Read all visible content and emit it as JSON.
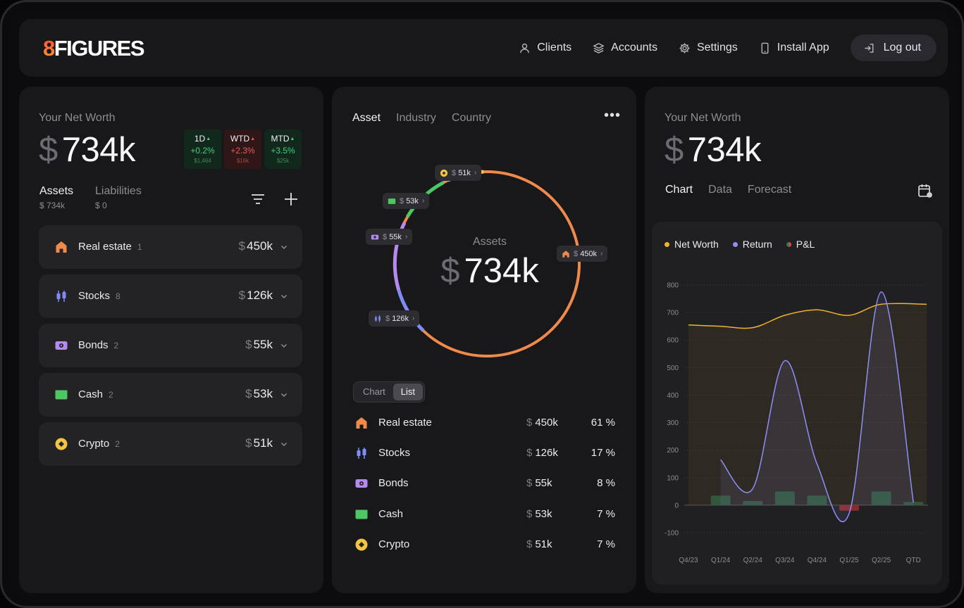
{
  "app": {
    "logo_digit": "8",
    "logo_text": "FIGURES"
  },
  "nav": {
    "clients": "Clients",
    "accounts": "Accounts",
    "settings": "Settings",
    "install": "Install App",
    "logout": "Log out"
  },
  "left": {
    "label": "Your Net Worth",
    "currency": "$",
    "value": "734k",
    "chips": [
      {
        "label": "1D",
        "pct": "+0.2%",
        "sub": "$1,464",
        "trend": "up"
      },
      {
        "label": "WTD",
        "pct": "+2.3%",
        "sub": "$16k",
        "trend": "down"
      },
      {
        "label": "MTD",
        "pct": "+3.5%",
        "sub": "$25k",
        "trend": "up"
      }
    ],
    "tabs": [
      {
        "label": "Assets",
        "sub": "$ 734k"
      },
      {
        "label": "Liabilities",
        "sub": "$ 0"
      }
    ],
    "assets": [
      {
        "name": "Real estate",
        "count": "1",
        "currency": "$",
        "amount": "450k",
        "icon": "house-icon",
        "color": "#f08a4b"
      },
      {
        "name": "Stocks",
        "count": "8",
        "currency": "$",
        "amount": "126k",
        "icon": "candlestick-icon",
        "color": "#7f8cf5"
      },
      {
        "name": "Bonds",
        "count": "2",
        "currency": "$",
        "amount": "55k",
        "icon": "bond-icon",
        "color": "#b489f0"
      },
      {
        "name": "Cash",
        "count": "2",
        "currency": "$",
        "amount": "53k",
        "icon": "wallet-icon",
        "color": "#4cc764"
      },
      {
        "name": "Crypto",
        "count": "2",
        "currency": "$",
        "amount": "51k",
        "icon": "coin-icon",
        "color": "#f4c542"
      }
    ]
  },
  "middle": {
    "tabs": [
      "Asset",
      "Industry",
      "Country"
    ],
    "menu": "•••",
    "center_label": "Assets",
    "currency": "$",
    "center_value": "734k",
    "donut_tags": [
      {
        "amount": "51k"
      },
      {
        "amount": "53k"
      },
      {
        "amount": "55k"
      },
      {
        "amount": "450k"
      },
      {
        "amount": "126k"
      }
    ],
    "view_toggle": {
      "chart": "Chart",
      "list": "List"
    },
    "list": [
      {
        "name": "Real estate",
        "amount": "450k",
        "pct": "61 %"
      },
      {
        "name": "Stocks",
        "amount": "126k",
        "pct": "17 %"
      },
      {
        "name": "Bonds",
        "amount": "55k",
        "pct": "8 %"
      },
      {
        "name": "Cash",
        "amount": "53k",
        "pct": "7 %"
      },
      {
        "name": "Crypto",
        "amount": "51k",
        "pct": "7 %"
      }
    ]
  },
  "right": {
    "label": "Your Net Worth",
    "currency": "$",
    "value": "734k",
    "tabs": [
      "Chart",
      "Data",
      "Forecast"
    ],
    "legend": [
      "Net Worth",
      "Return",
      "P&L"
    ]
  },
  "chart_data": {
    "type": "line",
    "categories": [
      "Q4/23",
      "Q1/24",
      "Q2/24",
      "Q3/24",
      "Q4/24",
      "Q1/25",
      "Q2/25",
      "QTD"
    ],
    "ylim": [
      -100,
      800
    ],
    "yticks": [
      800,
      700,
      600,
      500,
      400,
      300,
      200,
      100,
      0,
      -100
    ],
    "series": [
      {
        "name": "Net Worth",
        "color": "#f0b429",
        "values": [
          655,
          650,
          645,
          690,
          710,
          690,
          730,
          730
        ]
      },
      {
        "name": "Return",
        "color": "#8f8ff5",
        "values": [
          null,
          165,
          60,
          525,
          150,
          -30,
          775,
          10
        ]
      },
      {
        "name": "P&L",
        "color": "#2f7a58",
        "values": [
          null,
          35,
          15,
          50,
          35,
          -20,
          50,
          12
        ]
      }
    ]
  },
  "colors": {
    "real_estate": "#f08a4b",
    "stocks": "#7f8cf5",
    "bonds": "#b489f0",
    "cash": "#4cc764",
    "crypto": "#f4c542"
  }
}
